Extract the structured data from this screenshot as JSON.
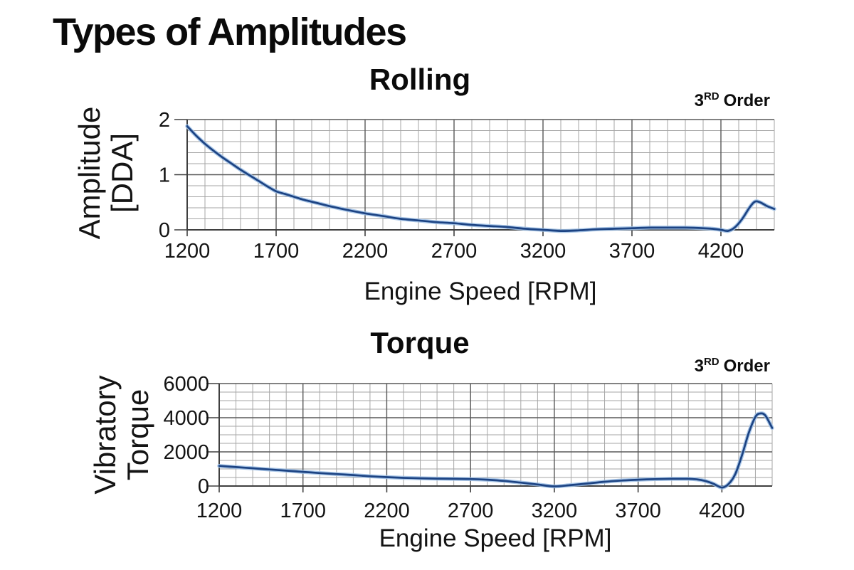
{
  "page": {
    "title": "Types of Amplitudes"
  },
  "colors": {
    "background": "#ffffff",
    "text": "#141414",
    "curve": "#1c4383",
    "curve_halo": "#9bbde4",
    "grid_minor": "#a6a6a6",
    "grid_major": "#595959",
    "axis": "#3f3f3f"
  },
  "chart_data": [
    {
      "type": "line",
      "title": "Rolling",
      "order_base": "3",
      "order_sup": "RD",
      "order_rest": "Order",
      "xlabel": "Engine Speed [RPM]",
      "ylabel_lines": [
        "Amplitude",
        "[DDA]"
      ],
      "x_axis": {
        "min": 1200,
        "max": 4500,
        "major_step": 500,
        "minor_step": 100,
        "ticks": [
          1200,
          1700,
          2200,
          2700,
          3200,
          3700,
          4200
        ]
      },
      "y_axis": {
        "min": 0,
        "max": 2,
        "major_step": 1,
        "minor_step": 0.2,
        "ticks": [
          0,
          1,
          2
        ]
      },
      "grid": "on",
      "legend": "none",
      "series": [
        {
          "points": [
            [
              1200,
              1.88
            ],
            [
              1250,
              1.71
            ],
            [
              1300,
              1.56
            ],
            [
              1350,
              1.43
            ],
            [
              1400,
              1.31
            ],
            [
              1450,
              1.2
            ],
            [
              1500,
              1.09
            ],
            [
              1550,
              0.99
            ],
            [
              1600,
              0.89
            ],
            [
              1650,
              0.79
            ],
            [
              1700,
              0.7
            ],
            [
              1750,
              0.65
            ],
            [
              1800,
              0.6
            ],
            [
              1850,
              0.55
            ],
            [
              1900,
              0.51
            ],
            [
              1950,
              0.47
            ],
            [
              2000,
              0.43
            ],
            [
              2100,
              0.36
            ],
            [
              2200,
              0.3
            ],
            [
              2300,
              0.25
            ],
            [
              2400,
              0.2
            ],
            [
              2500,
              0.17
            ],
            [
              2600,
              0.14
            ],
            [
              2700,
              0.12
            ],
            [
              2800,
              0.09
            ],
            [
              2900,
              0.07
            ],
            [
              3000,
              0.05
            ],
            [
              3100,
              0.02
            ],
            [
              3200,
              0.0
            ],
            [
              3300,
              -0.02
            ],
            [
              3400,
              -0.01
            ],
            [
              3500,
              0.01
            ],
            [
              3600,
              0.02
            ],
            [
              3700,
              0.03
            ],
            [
              3800,
              0.04
            ],
            [
              3900,
              0.04
            ],
            [
              4000,
              0.04
            ],
            [
              4100,
              0.03
            ],
            [
              4150,
              0.02
            ],
            [
              4200,
              0.0
            ],
            [
              4240,
              -0.02
            ],
            [
              4280,
              0.05
            ],
            [
              4320,
              0.2
            ],
            [
              4360,
              0.4
            ],
            [
              4390,
              0.51
            ],
            [
              4420,
              0.5
            ],
            [
              4460,
              0.43
            ],
            [
              4500,
              0.38
            ]
          ]
        }
      ]
    },
    {
      "type": "line",
      "title": "Torque",
      "order_base": "3",
      "order_sup": "RD",
      "order_rest": "Order",
      "xlabel": "Engine Speed [RPM]",
      "ylabel_lines": [
        "Vibratory",
        "Torque"
      ],
      "x_axis": {
        "min": 1200,
        "max": 4500,
        "major_step": 500,
        "minor_step": 100,
        "ticks": [
          1200,
          1700,
          2200,
          2700,
          3200,
          3700,
          4200
        ]
      },
      "y_axis": {
        "min": 0,
        "max": 6000,
        "major_step": 2000,
        "minor_step": 500,
        "ticks": [
          0,
          2000,
          4000,
          6000
        ]
      },
      "grid": "on",
      "legend": "none",
      "series": [
        {
          "points": [
            [
              1200,
              1180
            ],
            [
              1300,
              1110
            ],
            [
              1400,
              1040
            ],
            [
              1500,
              970
            ],
            [
              1600,
              900
            ],
            [
              1700,
              830
            ],
            [
              1800,
              760
            ],
            [
              1900,
              700
            ],
            [
              2000,
              640
            ],
            [
              2100,
              570
            ],
            [
              2200,
              520
            ],
            [
              2300,
              480
            ],
            [
              2400,
              455
            ],
            [
              2500,
              435
            ],
            [
              2600,
              420
            ],
            [
              2700,
              410
            ],
            [
              2800,
              370
            ],
            [
              2900,
              300
            ],
            [
              3000,
              200
            ],
            [
              3100,
              90
            ],
            [
              3200,
              -20
            ],
            [
              3300,
              60
            ],
            [
              3400,
              150
            ],
            [
              3500,
              250
            ],
            [
              3600,
              320
            ],
            [
              3700,
              370
            ],
            [
              3800,
              405
            ],
            [
              3900,
              420
            ],
            [
              4000,
              420
            ],
            [
              4050,
              390
            ],
            [
              4100,
              300
            ],
            [
              4150,
              130
            ],
            [
              4200,
              -90
            ],
            [
              4240,
              120
            ],
            [
              4280,
              700
            ],
            [
              4320,
              1800
            ],
            [
              4360,
              3100
            ],
            [
              4400,
              4050
            ],
            [
              4430,
              4250
            ],
            [
              4460,
              4120
            ],
            [
              4500,
              3400
            ]
          ]
        }
      ]
    }
  ]
}
